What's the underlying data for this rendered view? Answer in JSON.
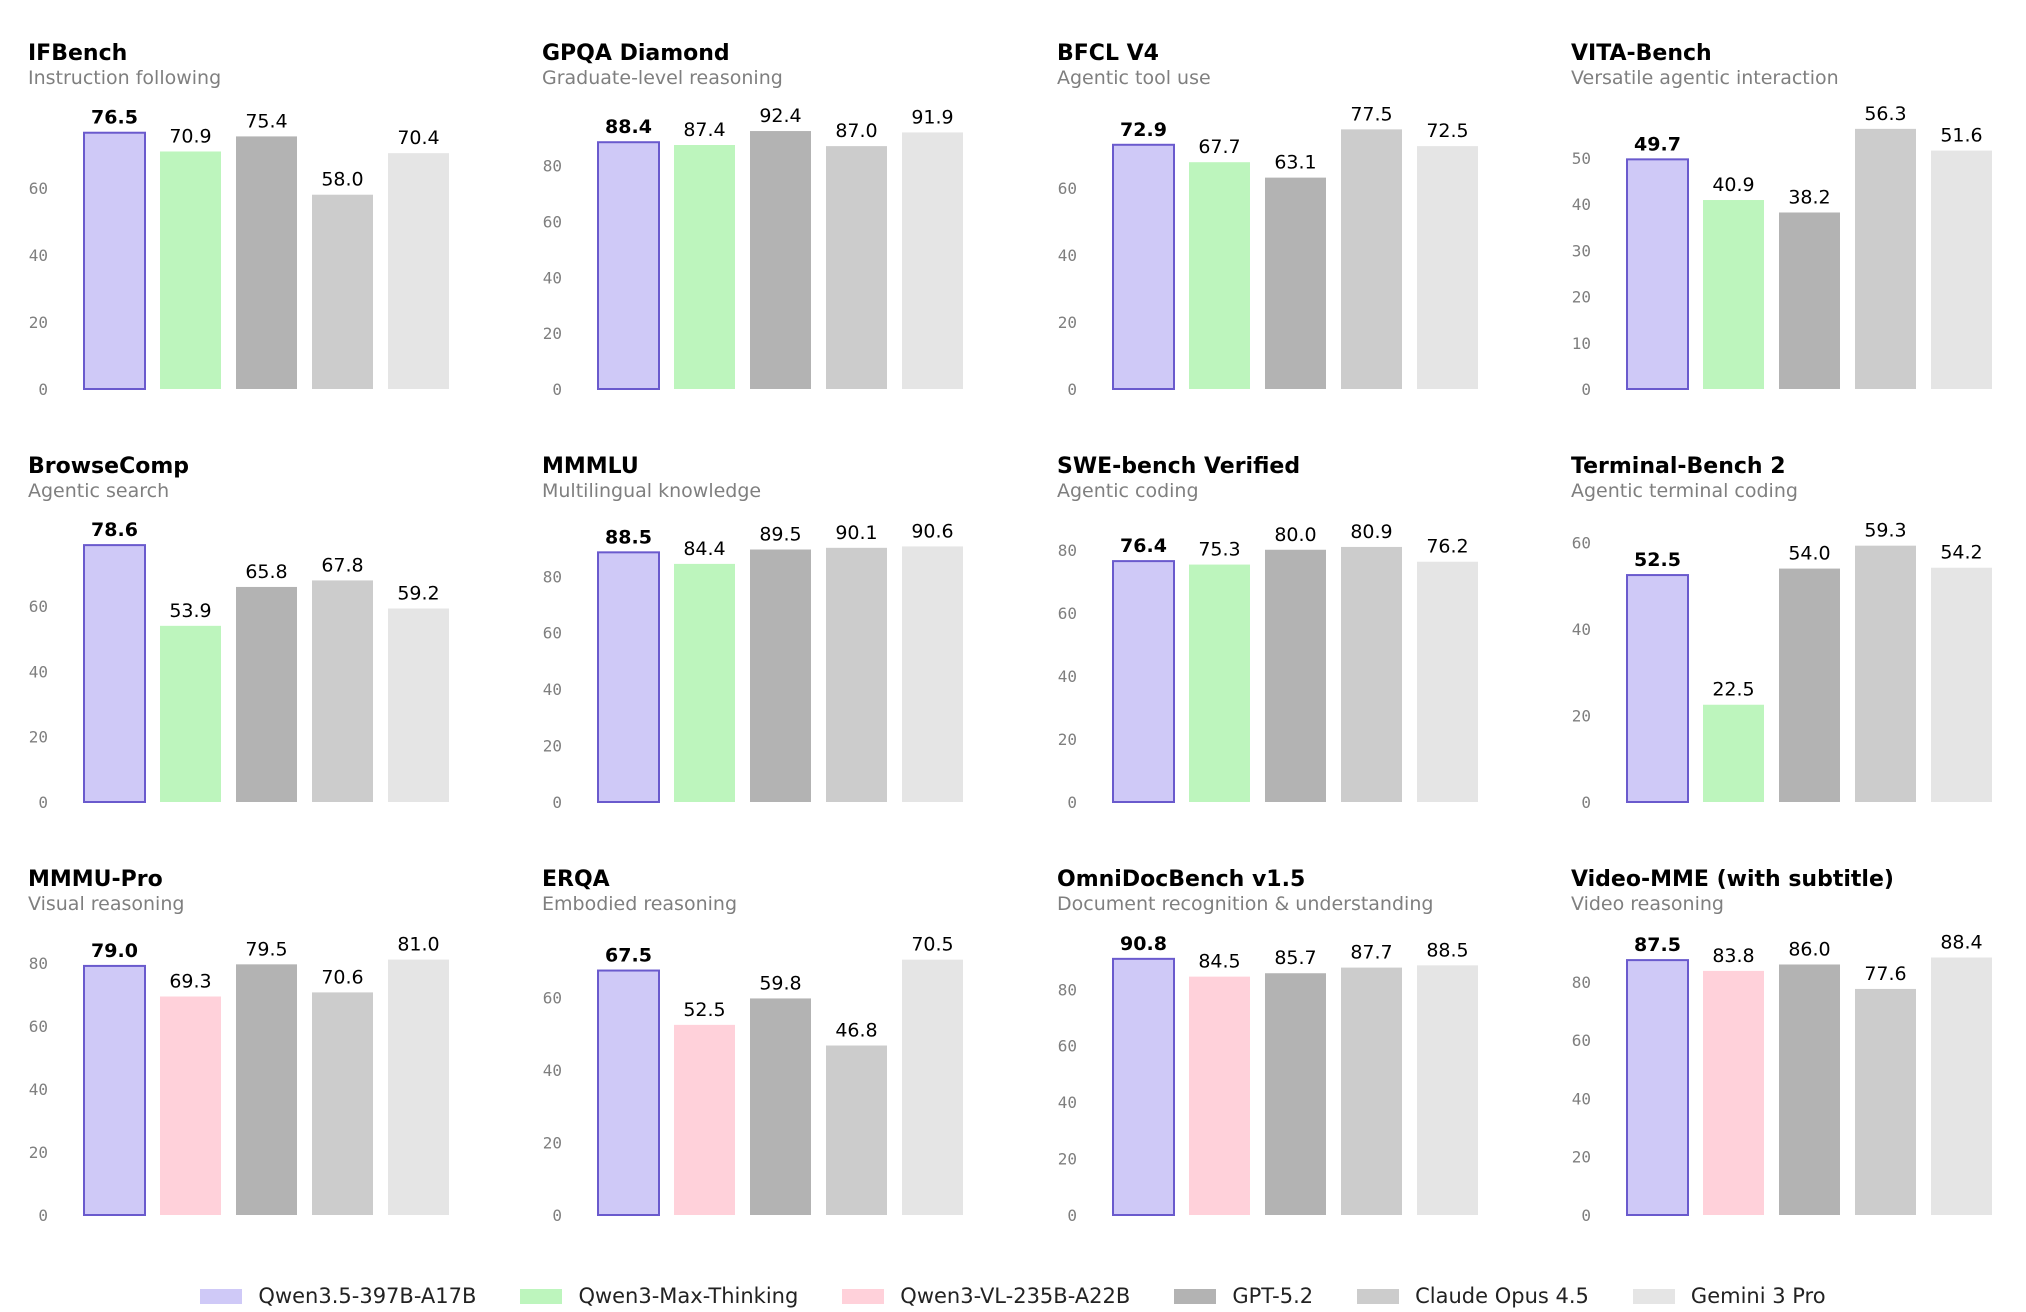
{
  "chart_data": [
    {
      "type": "bar",
      "title": "IFBench",
      "subtitle": "Instruction following",
      "series_names": [
        "Qwen3.5-397B-A17B",
        "Qwen3-Max-Thinking",
        "GPT-5.2",
        "Claude Opus 4.5",
        "Gemini 3 Pro"
      ],
      "values": [
        76.5,
        70.9,
        75.4,
        58.0,
        70.4
      ],
      "value_labels": [
        "76.5",
        "70.9",
        "75.4",
        "58.0",
        "70.4"
      ],
      "yticks": [
        0,
        20,
        40,
        60
      ],
      "ylim": [
        0,
        80
      ]
    },
    {
      "type": "bar",
      "title": "GPQA Diamond",
      "subtitle": "Graduate-level reasoning",
      "series_names": [
        "Qwen3.5-397B-A17B",
        "Qwen3-Max-Thinking",
        "GPT-5.2",
        "Claude Opus 4.5",
        "Gemini 3 Pro"
      ],
      "values": [
        88.4,
        87.4,
        92.4,
        87.0,
        91.9
      ],
      "value_labels": [
        "88.4",
        "87.4",
        "92.4",
        "87.0",
        "91.9"
      ],
      "yticks": [
        0,
        20,
        40,
        60,
        80
      ],
      "ylim": [
        0,
        96
      ]
    },
    {
      "type": "bar",
      "title": "BFCL V4",
      "subtitle": "Agentic tool use",
      "series_names": [
        "Qwen3.5-397B-A17B",
        "Qwen3-Max-Thinking",
        "GPT-5.2",
        "Claude Opus 4.5",
        "Gemini 3 Pro"
      ],
      "values": [
        72.9,
        67.7,
        63.1,
        77.5,
        72.5
      ],
      "value_labels": [
        "72.9",
        "67.7",
        "63.1",
        "77.5",
        "72.5"
      ],
      "yticks": [
        0,
        20,
        40,
        60
      ],
      "ylim": [
        0,
        80
      ]
    },
    {
      "type": "bar",
      "title": "VITA-Bench",
      "subtitle": "Versatile agentic interaction",
      "series_names": [
        "Qwen3.5-397B-A17B",
        "Qwen3-Max-Thinking",
        "GPT-5.2",
        "Claude Opus 4.5",
        "Gemini 3 Pro"
      ],
      "values": [
        49.7,
        40.9,
        38.2,
        56.3,
        51.6
      ],
      "value_labels": [
        "49.7",
        "40.9",
        "38.2",
        "56.3",
        "51.6"
      ],
      "yticks": [
        0,
        10,
        20,
        30,
        40,
        50
      ],
      "ylim": [
        0,
        58
      ]
    },
    {
      "type": "bar",
      "title": "BrowseComp",
      "subtitle": "Agentic search",
      "series_names": [
        "Qwen3.5-397B-A17B",
        "Qwen3-Max-Thinking",
        "GPT-5.2",
        "Claude Opus 4.5",
        "Gemini 3 Pro"
      ],
      "values": [
        78.6,
        53.9,
        65.8,
        67.8,
        59.2
      ],
      "value_labels": [
        "78.6",
        "53.9",
        "65.8",
        "67.8",
        "59.2"
      ],
      "yticks": [
        0,
        20,
        40,
        60
      ],
      "ylim": [
        0,
        82
      ]
    },
    {
      "type": "bar",
      "title": "MMMLU",
      "subtitle": "Multilingual knowledge",
      "series_names": [
        "Qwen3.5-397B-A17B",
        "Qwen3-Max-Thinking",
        "GPT-5.2",
        "Claude Opus 4.5",
        "Gemini 3 Pro"
      ],
      "values": [
        88.5,
        84.4,
        89.5,
        90.1,
        90.6
      ],
      "value_labels": [
        "88.5",
        "84.4",
        "89.5",
        "90.1",
        "90.6"
      ],
      "yticks": [
        0,
        20,
        40,
        60,
        80
      ],
      "ylim": [
        0,
        95
      ]
    },
    {
      "type": "bar",
      "title": "SWE-bench Verified",
      "subtitle": "Agentic coding",
      "series_names": [
        "Qwen3.5-397B-A17B",
        "Qwen3-Max-Thinking",
        "GPT-5.2",
        "Claude Opus 4.5",
        "Gemini 3 Pro"
      ],
      "values": [
        76.4,
        75.3,
        80.0,
        80.9,
        76.2
      ],
      "value_labels": [
        "76.4",
        "75.3",
        "80.0",
        "80.9",
        "76.2"
      ],
      "yticks": [
        0,
        20,
        40,
        60,
        80
      ],
      "ylim": [
        0,
        85
      ]
    },
    {
      "type": "bar",
      "title": "Terminal-Bench 2",
      "subtitle": "Agentic terminal coding",
      "series_names": [
        "Qwen3.5-397B-A17B",
        "Qwen3-Max-Thinking",
        "GPT-5.2",
        "Claude Opus 4.5",
        "Gemini 3 Pro"
      ],
      "values": [
        52.5,
        22.5,
        54.0,
        59.3,
        54.2
      ],
      "value_labels": [
        "52.5",
        "22.5",
        "54.0",
        "59.3",
        "54.2"
      ],
      "yticks": [
        0,
        20,
        40,
        60
      ],
      "ylim": [
        0,
        62
      ]
    },
    {
      "type": "bar",
      "title": "MMMU-Pro",
      "subtitle": "Visual reasoning",
      "series_names": [
        "Qwen3.5-397B-A17B",
        "Qwen3-VL-235B-A22B",
        "GPT-5.2",
        "Claude Opus 4.5",
        "Gemini 3 Pro"
      ],
      "values": [
        79.0,
        69.3,
        79.5,
        70.6,
        81.0
      ],
      "value_labels": [
        "79.0",
        "69.3",
        "79.5",
        "70.6",
        "81.0"
      ],
      "yticks": [
        0,
        20,
        40,
        60,
        80
      ],
      "ylim": [
        0,
        85
      ]
    },
    {
      "type": "bar",
      "title": "ERQA",
      "subtitle": "Embodied reasoning",
      "series_names": [
        "Qwen3.5-397B-A17B",
        "Qwen3-VL-235B-A22B",
        "GPT-5.2",
        "Claude Opus 4.5",
        "Gemini 3 Pro"
      ],
      "values": [
        67.5,
        52.5,
        59.8,
        46.8,
        70.5
      ],
      "value_labels": [
        "67.5",
        "52.5",
        "59.8",
        "46.8",
        "70.5"
      ],
      "yticks": [
        0,
        20,
        40,
        60
      ],
      "ylim": [
        0,
        74
      ]
    },
    {
      "type": "bar",
      "title": "OmniDocBench v1.5",
      "subtitle": "Document recognition & understanding",
      "series_names": [
        "Qwen3.5-397B-A17B",
        "Qwen3-VL-235B-A22B",
        "GPT-5.2",
        "Claude Opus 4.5",
        "Gemini 3 Pro"
      ],
      "values": [
        90.8,
        84.5,
        85.7,
        87.7,
        88.5
      ],
      "value_labels": [
        "90.8",
        "84.5",
        "85.7",
        "87.7",
        "88.5"
      ],
      "yticks": [
        0,
        20,
        40,
        60,
        80
      ],
      "ylim": [
        0,
        95
      ]
    },
    {
      "type": "bar",
      "title": "Video-MME (with subtitle)",
      "subtitle": "Video reasoning",
      "series_names": [
        "Qwen3.5-397B-A17B",
        "Qwen3-VL-235B-A22B",
        "GPT-5.2",
        "Claude Opus 4.5",
        "Gemini 3 Pro"
      ],
      "values": [
        87.5,
        83.8,
        86.0,
        77.6,
        88.4
      ],
      "value_labels": [
        "87.5",
        "83.8",
        "86.0",
        "77.6",
        "88.4"
      ],
      "yticks": [
        0,
        20,
        40,
        60,
        80
      ],
      "ylim": [
        0,
        92
      ]
    }
  ],
  "colors": {
    "Qwen3.5-397B-A17B": "#cfc9f7",
    "Qwen3.5-397B-A17B-edge": "#6a5acd",
    "Qwen3-Max-Thinking": "#bdf5bd",
    "Qwen3-VL-235B-A22B": "#ffd1da",
    "GPT-5.2": "#b3b3b3",
    "Claude Opus 4.5": "#cccccc",
    "Gemini 3 Pro": "#e5e5e5"
  },
  "legend": [
    {
      "label": "Qwen3.5-397B-A17B",
      "color": "#cfc9f7"
    },
    {
      "label": "Qwen3-Max-Thinking",
      "color": "#bdf5bd"
    },
    {
      "label": "Qwen3-VL-235B-A22B",
      "color": "#ffd1da"
    },
    {
      "label": "GPT-5.2",
      "color": "#b3b3b3"
    },
    {
      "label": "Claude Opus 4.5",
      "color": "#cccccc"
    },
    {
      "label": "Gemini 3 Pro",
      "color": "#e5e5e5"
    }
  ]
}
